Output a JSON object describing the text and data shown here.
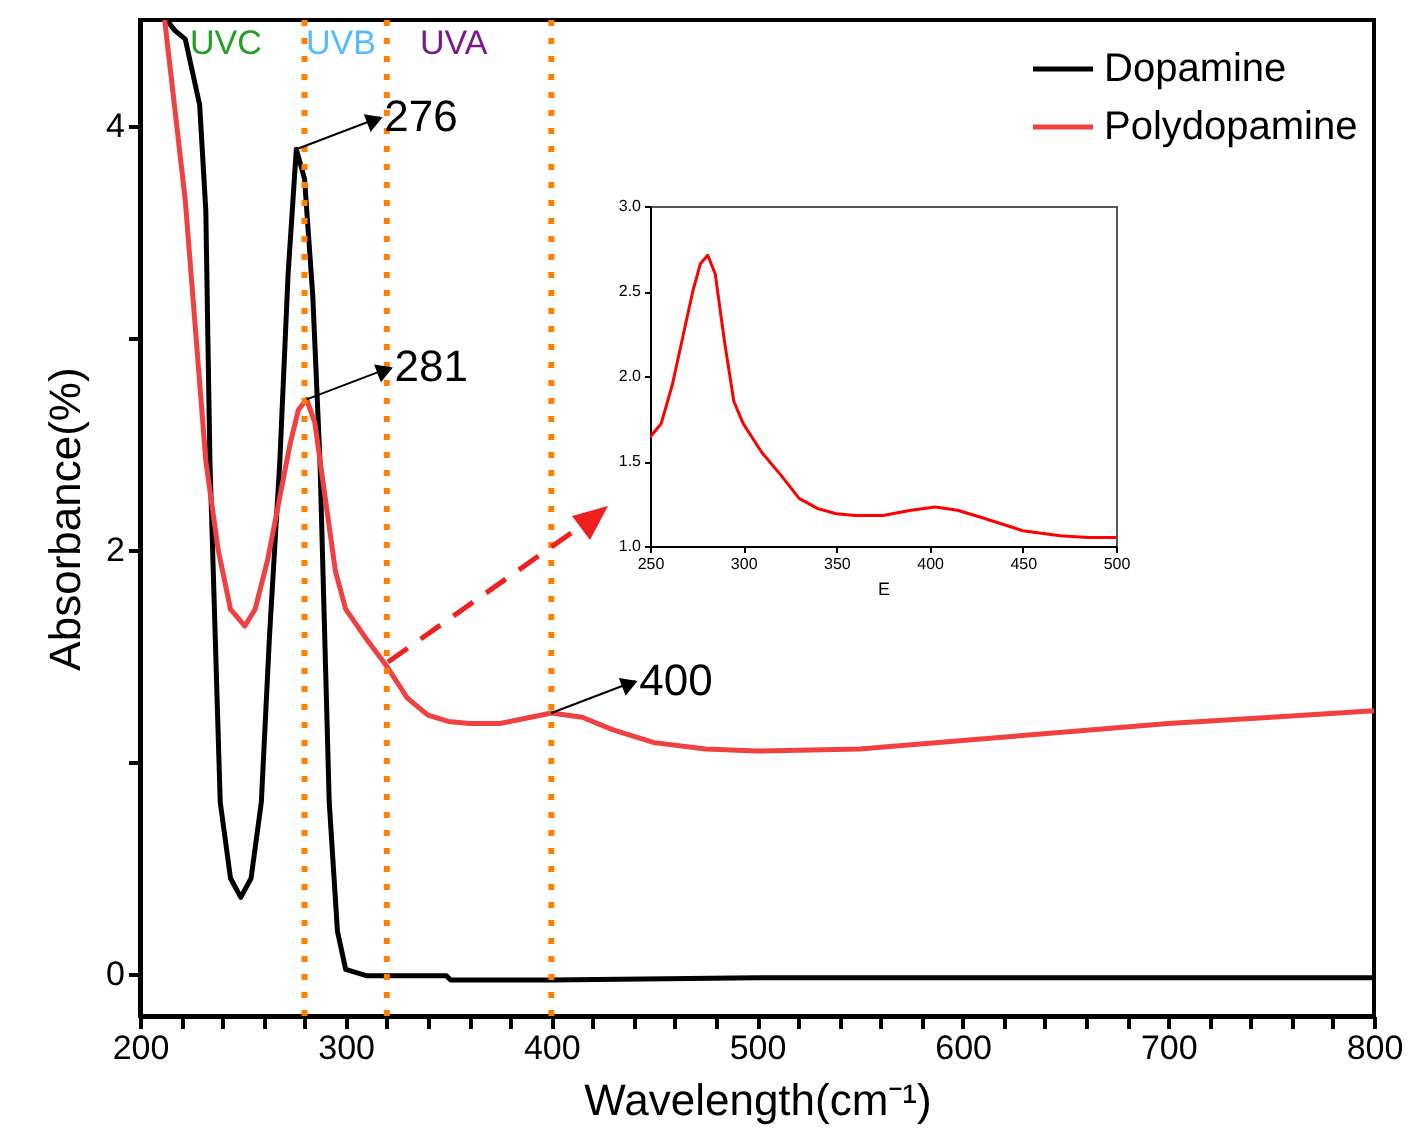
{
  "chart_data": [
    {
      "type": "line",
      "xlabel": "Wavelength(cm⁻¹)",
      "ylabel": "Absorbance(%)",
      "xlim": [
        200,
        800
      ],
      "xticks": [
        200,
        {
          "value": 220,
          "label": null
        },
        {
          "value": 240,
          "label": null
        },
        {
          "value": 260,
          "label": null
        },
        {
          "value": 280,
          "label": null
        },
        300,
        {
          "value": 320,
          "label": null
        },
        {
          "value": 340,
          "label": null
        },
        {
          "value": 360,
          "label": null
        },
        {
          "value": 380,
          "label": null
        },
        400,
        {
          "value": 420,
          "label": null
        },
        {
          "value": 440,
          "label": null
        },
        {
          "value": 460,
          "label": null
        },
        {
          "value": 480,
          "label": null
        },
        500,
        {
          "value": 520,
          "label": null
        },
        {
          "value": 540,
          "label": null
        },
        {
          "value": 560,
          "label": null
        },
        {
          "value": 580,
          "label": null
        },
        600,
        {
          "value": 620,
          "label": null
        },
        {
          "value": 640,
          "label": null
        },
        {
          "value": 660,
          "label": null
        },
        {
          "value": 680,
          "label": null
        },
        700,
        {
          "value": 720,
          "label": null
        },
        {
          "value": 740,
          "label": null
        },
        {
          "value": 760,
          "label": null
        },
        {
          "value": 780,
          "label": null
        },
        800
      ],
      "ylim": [
        -0.2,
        4.5
      ],
      "yticks": [
        0,
        {
          "value": 1,
          "label": null
        },
        2,
        {
          "value": 3,
          "label": null
        },
        4
      ],
      "legend": "top right",
      "series": [
        {
          "name": "Dopamine",
          "color": "#000000",
          "x": [
            213,
            217,
            222,
            229,
            232,
            233,
            234,
            239,
            244,
            249,
            254,
            259,
            263,
            268,
            272,
            276,
            280,
            284,
            287.5,
            292,
            296,
            300,
            310,
            349,
            351,
            400,
            500,
            800
          ],
          "values": [
            4.5,
            4.45,
            4.41,
            4.1,
            3.6,
            3.0,
            2.42,
            0.81,
            0.45,
            0.36,
            0.45,
            0.81,
            1.6,
            2.42,
            3.3,
            3.89,
            3.75,
            3.2,
            2.42,
            0.81,
            0.2,
            0.02,
            -0.01,
            -0.01,
            -0.03,
            -0.03,
            -0.02,
            -0.02
          ]
        },
        {
          "name": "Polydopamine",
          "color": "#f04040",
          "x": [
            212,
            222,
            232,
            238,
            244,
            251,
            256,
            262,
            268,
            273,
            277,
            281,
            285,
            290,
            295,
            300,
            310,
            320,
            330,
            340,
            350,
            360,
            375,
            390,
            400,
            415,
            430,
            450,
            475,
            500,
            550,
            600,
            650,
            700,
            750,
            800
          ],
          "values": [
            4.5,
            3.65,
            2.42,
            2.0,
            1.72,
            1.64,
            1.72,
            1.95,
            2.25,
            2.5,
            2.66,
            2.71,
            2.6,
            2.25,
            1.9,
            1.72,
            1.58,
            1.45,
            1.3,
            1.22,
            1.19,
            1.18,
            1.18,
            1.21,
            1.23,
            1.21,
            1.15,
            1.09,
            1.06,
            1.05,
            1.06,
            1.1,
            1.14,
            1.18,
            1.21,
            1.24
          ]
        }
      ],
      "ref_lines": [
        {
          "axis": "x",
          "value": 280,
          "color": "#ff8000",
          "line_style": "dotted"
        },
        {
          "axis": "x",
          "value": 320,
          "color": "#ff8000",
          "line_style": "dotted"
        },
        {
          "axis": "x",
          "value": 400,
          "color": "#ff8000",
          "line_style": "dotted"
        }
      ],
      "annotations": [
        "UVC",
        "UVB",
        "UVA",
        {
          "text": "276",
          "x": 276,
          "y": 3.89
        },
        {
          "text": "281",
          "x": 281,
          "y": 2.71
        },
        {
          "text": "400",
          "x": 400,
          "y": 1.23
        }
      ]
    },
    {
      "type": "line",
      "xlabel": "E",
      "xlim": [
        250,
        500
      ],
      "xticks": [
        250,
        300,
        350,
        400,
        450,
        500
      ],
      "ylim": [
        1,
        3
      ],
      "yticks": [
        {
          "value": 1,
          "label": "1.0"
        },
        {
          "value": 1.5,
          "label": "1.5"
        },
        {
          "value": 2,
          "label": "2.0"
        },
        {
          "value": 2.5,
          "label": "2.5"
        },
        {
          "value": 3,
          "label": "3.0"
        }
      ],
      "series": [
        {
          "color": "#ff0000",
          "x": [
            250,
            256,
            262,
            268,
            273,
            277,
            281,
            285,
            290,
            295,
            300,
            310,
            320,
            330,
            340,
            350,
            360,
            375,
            390,
            403,
            415,
            430,
            450,
            470,
            485,
            500
          ],
          "values": [
            1.64,
            1.72,
            1.95,
            2.25,
            2.5,
            2.66,
            2.71,
            2.6,
            2.2,
            1.85,
            1.72,
            1.55,
            1.42,
            1.28,
            1.22,
            1.19,
            1.18,
            1.18,
            1.21,
            1.23,
            1.21,
            1.16,
            1.09,
            1.06,
            1.05,
            1.05
          ]
        }
      ]
    }
  ]
}
